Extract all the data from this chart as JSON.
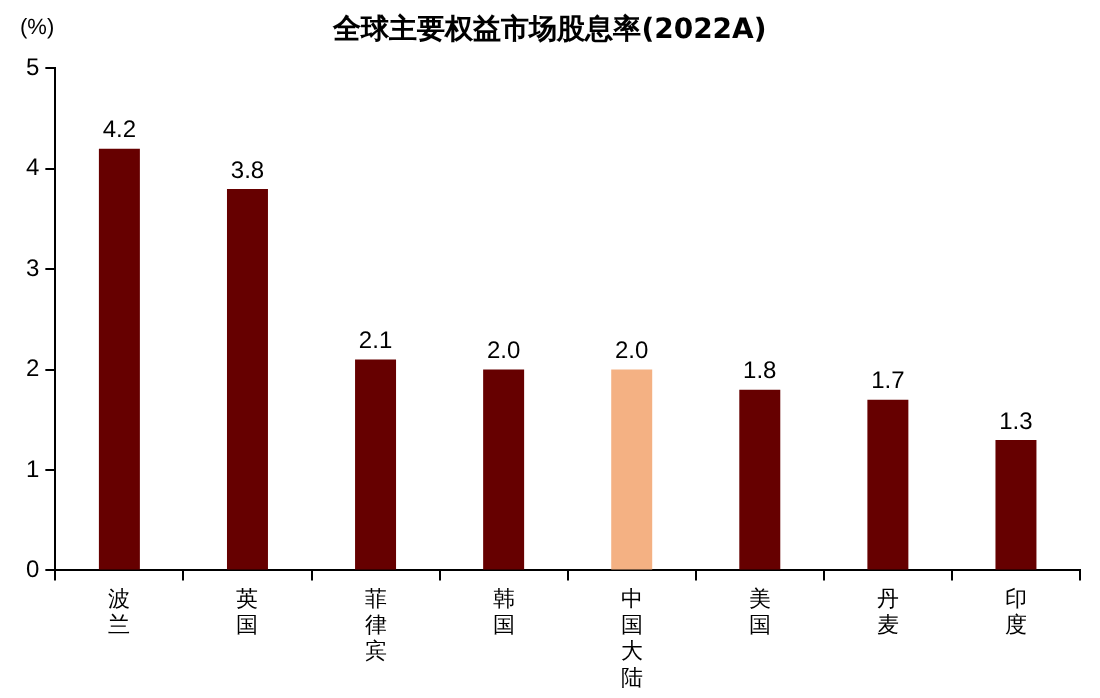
{
  "chart_data": {
    "type": "bar",
    "title": "全球主要权益市场股息率(2022A)",
    "ylabel": "(%)",
    "categories": [
      "波兰",
      "英国",
      "菲律宾",
      "韩国",
      "中国大陆",
      "美国",
      "丹麦",
      "印度"
    ],
    "values": [
      4.2,
      3.8,
      2.1,
      2.0,
      2.0,
      1.8,
      1.7,
      1.3
    ],
    "colors": [
      "#660000",
      "#660000",
      "#660000",
      "#660000",
      "#f4b183",
      "#660000",
      "#660000",
      "#660000"
    ],
    "value_labels": [
      "4.2",
      "3.8",
      "2.1",
      "2.0",
      "2.0",
      "1.8",
      "1.7",
      "1.3"
    ],
    "ylim": [
      0,
      5
    ],
    "yticks": [
      0,
      1,
      2,
      3,
      4,
      5
    ],
    "grid": false,
    "legend": false
  }
}
